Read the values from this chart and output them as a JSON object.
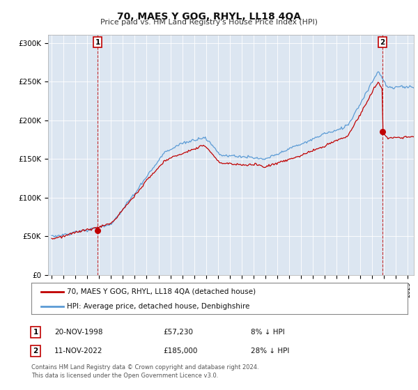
{
  "title": "70, MAES Y GOG, RHYL, LL18 4QA",
  "subtitle": "Price paid vs. HM Land Registry's House Price Index (HPI)",
  "ylabel_ticks": [
    "£0",
    "£50K",
    "£100K",
    "£150K",
    "£200K",
    "£250K",
    "£300K"
  ],
  "ytick_values": [
    0,
    50000,
    100000,
    150000,
    200000,
    250000,
    300000
  ],
  "ylim": [
    0,
    310000
  ],
  "xlim_start": 1994.7,
  "xlim_end": 2025.5,
  "sale1_date_num": 1998.88,
  "sale1_price": 57230,
  "sale2_date_num": 2022.86,
  "sale2_price": 185000,
  "hpi_color": "#5b9bd5",
  "price_color": "#c00000",
  "dashed_color": "#c00000",
  "chart_bg": "#dce6f1",
  "legend_label1": "70, MAES Y GOG, RHYL, LL18 4QA (detached house)",
  "legend_label2": "HPI: Average price, detached house, Denbighshire",
  "footnote1": "Contains HM Land Registry data © Crown copyright and database right 2024.",
  "footnote2": "This data is licensed under the Open Government Licence v3.0.",
  "background_color": "#ffffff",
  "grid_color": "#ffffff"
}
